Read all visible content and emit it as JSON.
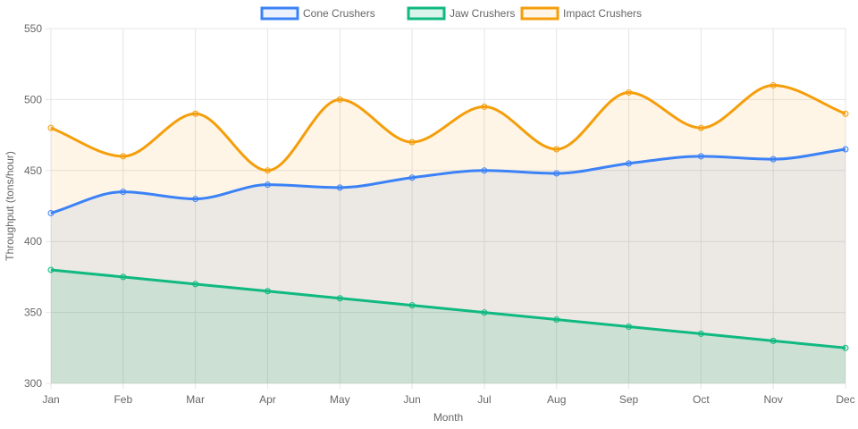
{
  "chart_data": {
    "type": "line",
    "title": "",
    "xlabel": "Month",
    "ylabel": "Throughput (tons/hour)",
    "ylim": [
      300,
      550
    ],
    "yticks": [
      300,
      350,
      400,
      450,
      500,
      550
    ],
    "grid": true,
    "legend_position": "top-center",
    "categories": [
      "Jan",
      "Feb",
      "Mar",
      "Apr",
      "May",
      "Jun",
      "Jul",
      "Aug",
      "Sep",
      "Oct",
      "Nov",
      "Dec"
    ],
    "series": [
      {
        "name": "Cone Crushers",
        "color": "#3b82f6",
        "fill": "rgba(59,130,246,0.10)",
        "values": [
          420,
          435,
          430,
          440,
          438,
          445,
          450,
          448,
          455,
          460,
          458,
          465
        ]
      },
      {
        "name": "Jaw Crushers",
        "color": "#10b981",
        "fill": "rgba(16,185,129,0.16)",
        "values": [
          380,
          375,
          370,
          365,
          360,
          355,
          350,
          345,
          340,
          335,
          330,
          325
        ]
      },
      {
        "name": "Impact Crushers",
        "color": "#f59e0b",
        "fill": "rgba(245,158,11,0.10)",
        "values": [
          480,
          460,
          490,
          450,
          500,
          470,
          495,
          465,
          505,
          480,
          510,
          490
        ]
      }
    ]
  }
}
